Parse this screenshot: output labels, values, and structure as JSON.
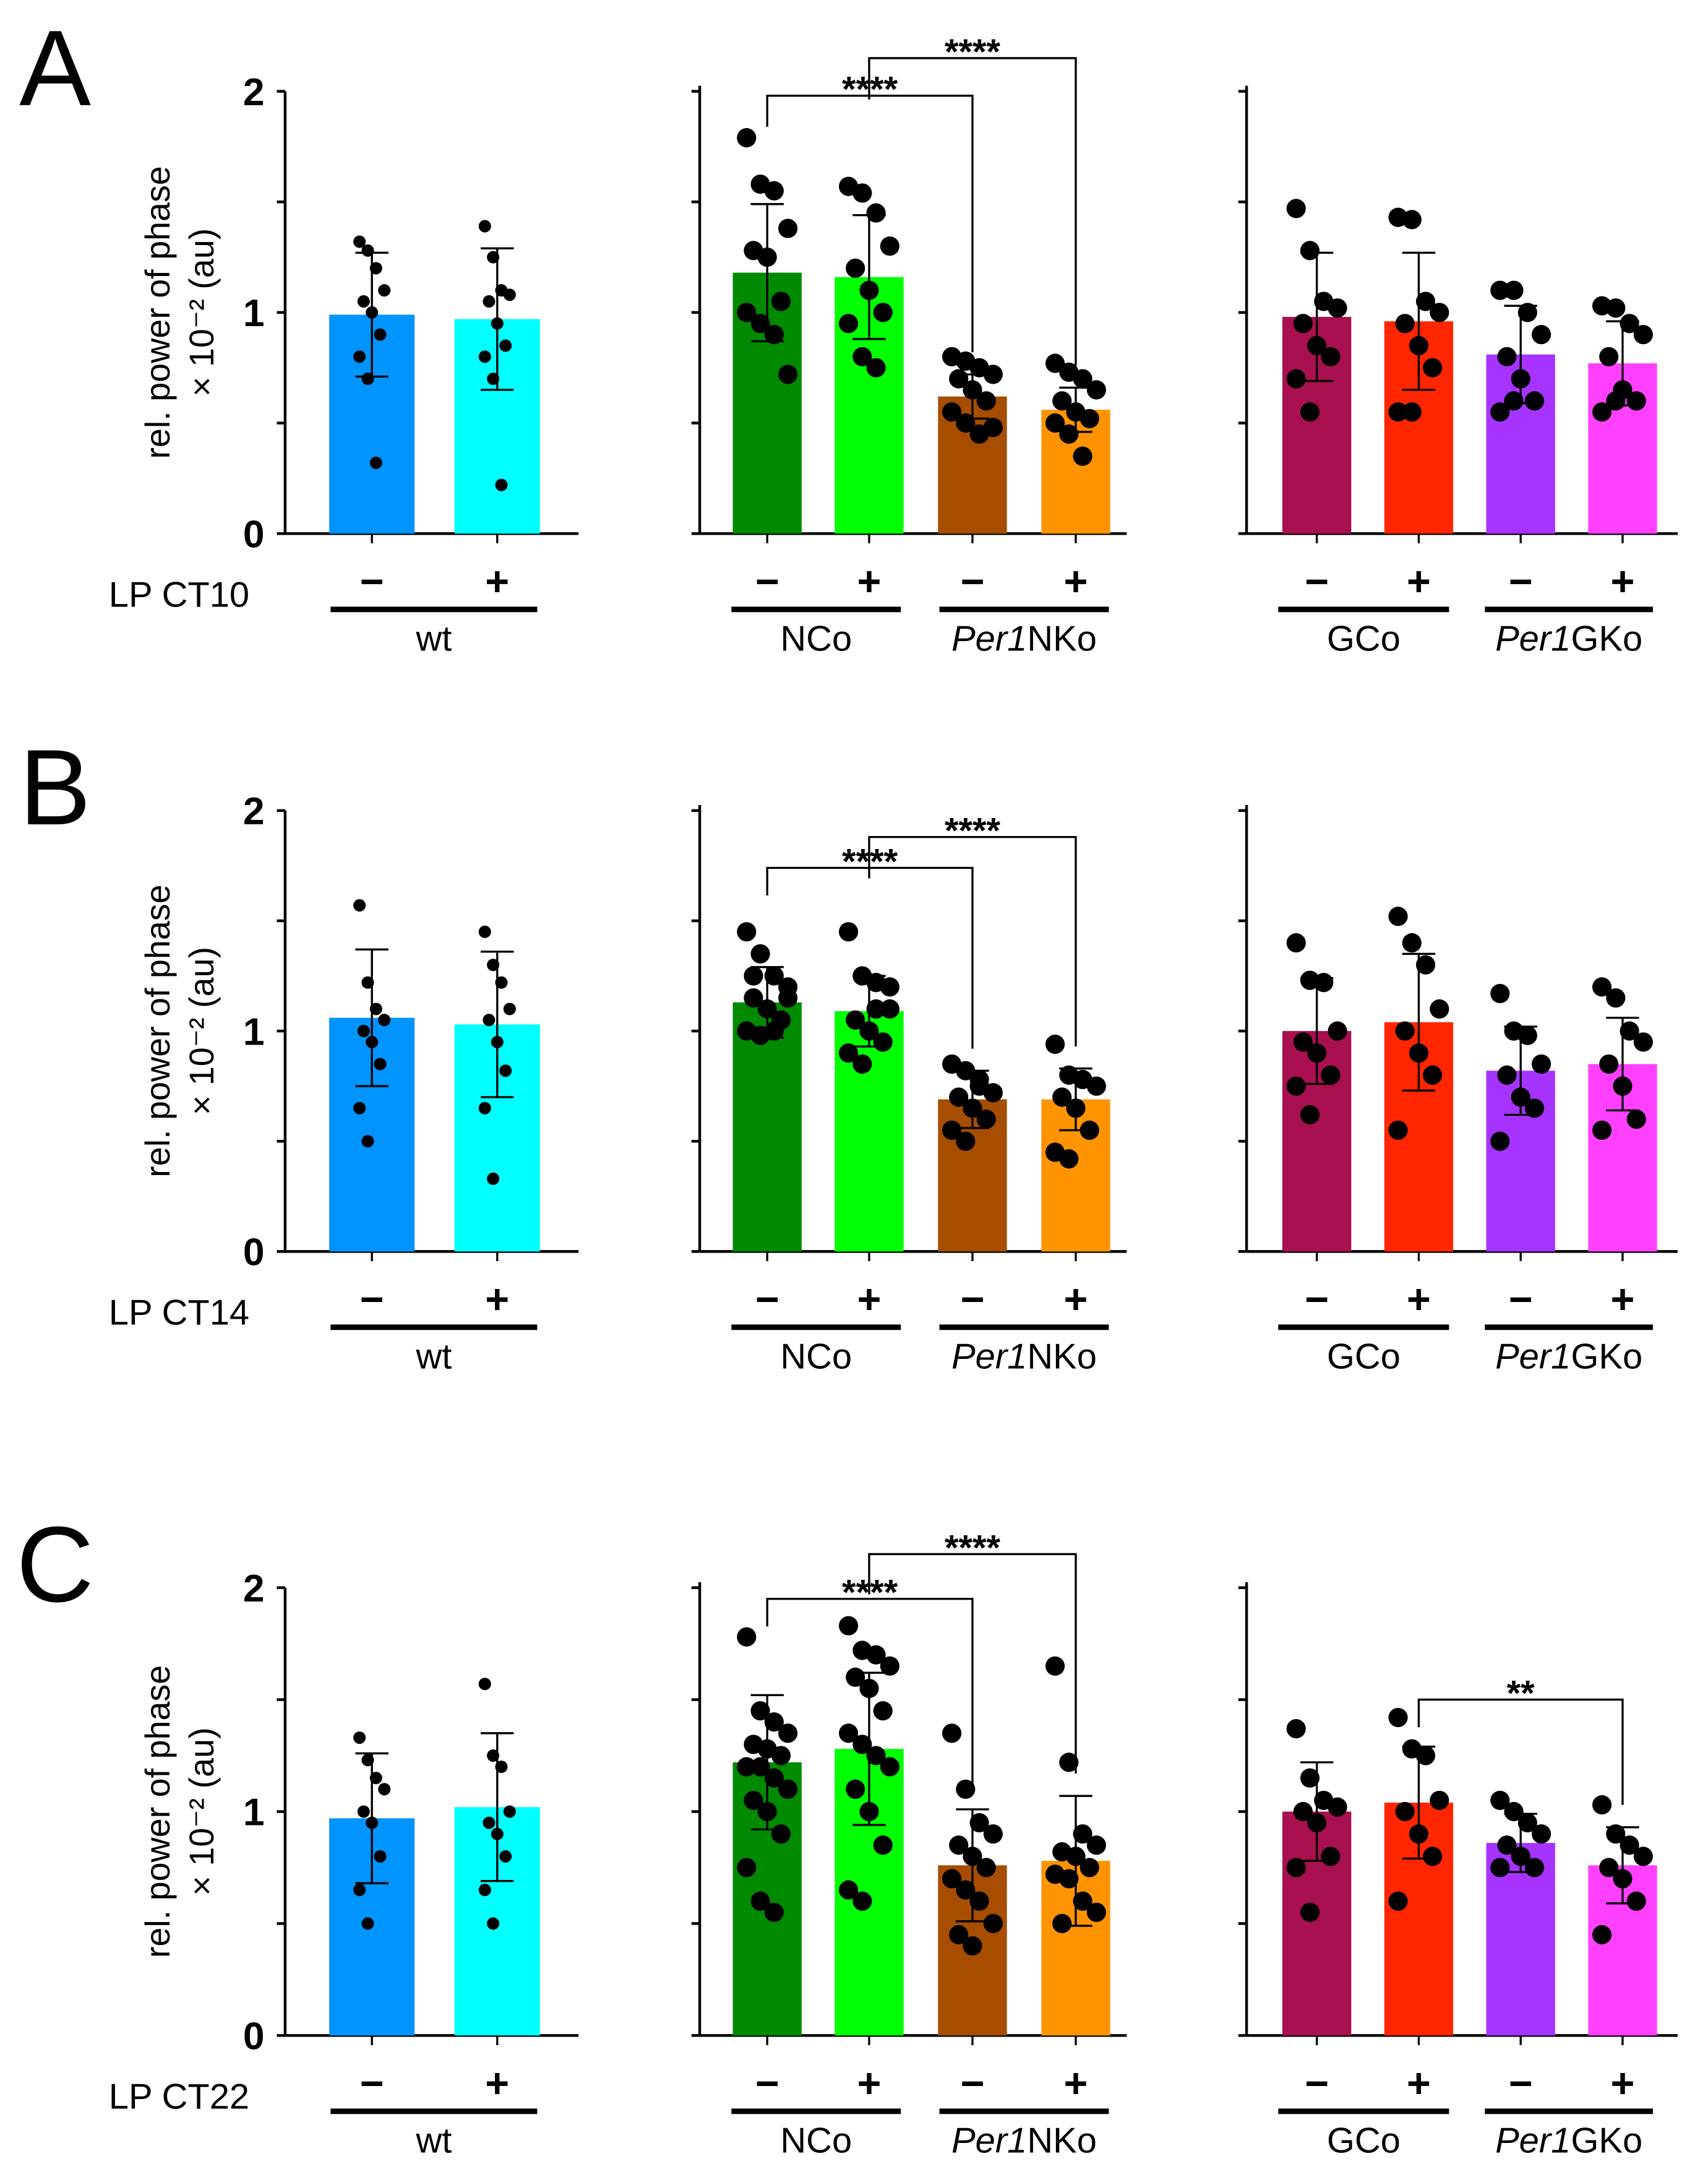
{
  "chart_data": [
    {
      "panel": "A",
      "row_label": "LP CT10",
      "ylabel": "rel. power of phase",
      "ylabel2": "× 10⁻² (au)",
      "ylim": [
        0,
        2
      ],
      "yticks": [
        "0",
        "1",
        "2"
      ],
      "type": "bar",
      "series": [
        {
          "name": "wt −",
          "group": "wt",
          "lp": "−",
          "color": "#0094ff",
          "mean": 0.99,
          "sd": 0.28,
          "points": [
            1.32,
            1.28,
            1.2,
            1.1,
            1.05,
            1.0,
            0.9,
            0.8,
            0.7,
            0.32
          ]
        },
        {
          "name": "wt +",
          "group": "wt",
          "lp": "+",
          "color": "#00ffff",
          "mean": 0.97,
          "sd": 0.32,
          "points": [
            1.39,
            1.25,
            1.1,
            1.08,
            1.05,
            0.95,
            0.85,
            0.8,
            0.7,
            0.22
          ]
        },
        {
          "name": "NCo −",
          "group": "NCo",
          "lp": "−",
          "color": "#008a00",
          "mean": 1.18,
          "sd": 0.31,
          "points": [
            1.79,
            1.58,
            1.55,
            1.38,
            1.28,
            1.25,
            1.05,
            1.0,
            0.95,
            0.9,
            0.72
          ]
        },
        {
          "name": "NCo +",
          "group": "NCo",
          "lp": "+",
          "color": "#00ff00",
          "mean": 1.16,
          "sd": 0.28,
          "points": [
            1.57,
            1.54,
            1.45,
            1.3,
            1.2,
            1.1,
            1.0,
            0.95,
            0.8,
            0.75
          ]
        },
        {
          "name": "Per1NKo −",
          "group": "Per1NKo",
          "lp": "−",
          "color": "#a64d00",
          "mean": 0.62,
          "sd": 0.1,
          "points": [
            0.8,
            0.78,
            0.75,
            0.72,
            0.7,
            0.65,
            0.6,
            0.55,
            0.5,
            0.45,
            0.48
          ]
        },
        {
          "name": "Per1NKo +",
          "group": "Per1NKo",
          "lp": "+",
          "color": "#ff9400",
          "mean": 0.56,
          "sd": 0.1,
          "points": [
            0.77,
            0.73,
            0.7,
            0.65,
            0.6,
            0.55,
            0.52,
            0.5,
            0.45,
            0.35
          ]
        },
        {
          "name": "GCo −",
          "group": "GCo",
          "lp": "−",
          "color": "#a8104f",
          "mean": 0.98,
          "sd": 0.29,
          "points": [
            1.47,
            1.28,
            1.05,
            1.02,
            0.95,
            0.85,
            0.8,
            0.7,
            0.55
          ]
        },
        {
          "name": "GCo +",
          "group": "GCo",
          "lp": "+",
          "color": "#ff2600",
          "mean": 0.96,
          "sd": 0.31,
          "points": [
            1.43,
            1.42,
            1.05,
            1.0,
            0.95,
            0.85,
            0.75,
            0.55,
            0.55
          ]
        },
        {
          "name": "Per1GKo −",
          "group": "Per1GKo",
          "lp": "−",
          "color": "#a633ff",
          "mean": 0.81,
          "sd": 0.22,
          "points": [
            1.1,
            1.1,
            1.0,
            0.9,
            0.8,
            0.7,
            0.6,
            0.55,
            0.6
          ]
        },
        {
          "name": "Per1GKo +",
          "group": "Per1GKo",
          "lp": "+",
          "color": "#ff40ff",
          "mean": 0.77,
          "sd": 0.19,
          "points": [
            1.03,
            1.02,
            0.95,
            0.9,
            0.8,
            0.65,
            0.6,
            0.55,
            0.6
          ]
        }
      ],
      "significance": [
        {
          "from": 2,
          "to": 4,
          "y": 1.98,
          "label": "****"
        },
        {
          "from": 3,
          "to": 5,
          "y": 2.15,
          "label": "****"
        }
      ]
    },
    {
      "panel": "B",
      "row_label": "LP CT14",
      "ylabel": "rel. power of phase",
      "ylabel2": "× 10⁻² (au)",
      "ylim": [
        0,
        2
      ],
      "yticks": [
        "0",
        "1",
        "2"
      ],
      "type": "bar",
      "series": [
        {
          "name": "wt −",
          "group": "wt",
          "lp": "−",
          "color": "#0094ff",
          "mean": 1.06,
          "sd": 0.31,
          "points": [
            1.57,
            1.22,
            1.1,
            1.05,
            1.0,
            0.95,
            0.85,
            0.65,
            0.5
          ]
        },
        {
          "name": "wt +",
          "group": "wt",
          "lp": "+",
          "color": "#00ffff",
          "mean": 1.03,
          "sd": 0.33,
          "points": [
            1.45,
            1.3,
            1.22,
            1.1,
            1.05,
            0.95,
            0.82,
            0.65,
            0.33
          ]
        },
        {
          "name": "NCo −",
          "group": "NCo",
          "lp": "−",
          "color": "#008a00",
          "mean": 1.13,
          "sd": 0.16,
          "points": [
            1.45,
            1.35,
            1.25,
            1.2,
            1.15,
            1.1,
            1.05,
            1.0,
            0.98,
            1.0,
            1.15,
            1.25
          ]
        },
        {
          "name": "NCo +",
          "group": "NCo",
          "lp": "+",
          "color": "#00ff00",
          "mean": 1.09,
          "sd": 0.16,
          "points": [
            1.45,
            1.25,
            1.22,
            1.1,
            1.05,
            1.0,
            0.95,
            0.9,
            0.85,
            1.1,
            1.2
          ]
        },
        {
          "name": "Per1NKo −",
          "group": "Per1NKo",
          "lp": "−",
          "color": "#a64d00",
          "mean": 0.69,
          "sd": 0.13,
          "points": [
            0.85,
            0.82,
            0.78,
            0.72,
            0.7,
            0.65,
            0.6,
            0.55,
            0.5,
            0.75
          ]
        },
        {
          "name": "Per1NKo +",
          "group": "Per1NKo",
          "lp": "+",
          "color": "#ff9400",
          "mean": 0.69,
          "sd": 0.14,
          "points": [
            0.94,
            0.8,
            0.78,
            0.75,
            0.7,
            0.65,
            0.55,
            0.45,
            0.42
          ]
        },
        {
          "name": "GCo −",
          "group": "GCo",
          "lp": "−",
          "color": "#a8104f",
          "mean": 1.0,
          "sd": 0.24,
          "points": [
            1.4,
            1.23,
            1.22,
            1.0,
            0.95,
            0.9,
            0.8,
            0.75,
            0.62
          ]
        },
        {
          "name": "GCo +",
          "group": "GCo",
          "lp": "+",
          "color": "#ff2600",
          "mean": 1.04,
          "sd": 0.31,
          "points": [
            1.52,
            1.4,
            1.3,
            1.1,
            1.0,
            0.9,
            0.8,
            0.55
          ]
        },
        {
          "name": "Per1GKo −",
          "group": "Per1GKo",
          "lp": "−",
          "color": "#a633ff",
          "mean": 0.82,
          "sd": 0.2,
          "points": [
            1.17,
            1.0,
            0.98,
            0.85,
            0.8,
            0.7,
            0.65,
            0.5
          ]
        },
        {
          "name": "Per1GKo +",
          "group": "Per1GKo",
          "lp": "+",
          "color": "#ff40ff",
          "mean": 0.85,
          "sd": 0.21,
          "points": [
            1.2,
            1.15,
            1.0,
            0.95,
            0.85,
            0.75,
            0.6,
            0.55
          ]
        }
      ],
      "significance": [
        {
          "from": 2,
          "to": 4,
          "y": 1.74,
          "label": "****"
        },
        {
          "from": 3,
          "to": 5,
          "y": 1.88,
          "label": "****"
        }
      ]
    },
    {
      "panel": "C",
      "row_label": "LP CT22",
      "ylabel": "rel. power of phase",
      "ylabel2": "× 10⁻² (au)",
      "ylim": [
        0,
        2
      ],
      "yticks": [
        "0",
        "1",
        "2"
      ],
      "type": "bar",
      "series": [
        {
          "name": "wt −",
          "group": "wt",
          "lp": "−",
          "color": "#0094ff",
          "mean": 0.97,
          "sd": 0.29,
          "points": [
            1.33,
            1.23,
            1.15,
            1.1,
            1.0,
            0.95,
            0.8,
            0.65,
            0.5
          ]
        },
        {
          "name": "wt +",
          "group": "wt",
          "lp": "+",
          "color": "#00ffff",
          "mean": 1.02,
          "sd": 0.33,
          "points": [
            1.57,
            1.25,
            1.2,
            1.0,
            0.95,
            0.9,
            0.8,
            0.65,
            0.5
          ]
        },
        {
          "name": "NCo −",
          "group": "NCo",
          "lp": "−",
          "color": "#008a00",
          "mean": 1.22,
          "sd": 0.3,
          "points": [
            1.78,
            1.45,
            1.4,
            1.35,
            1.3,
            1.28,
            1.25,
            1.2,
            1.2,
            1.15,
            1.1,
            1.05,
            1.0,
            0.9,
            0.75,
            0.6,
            0.55
          ]
        },
        {
          "name": "NCo +",
          "group": "NCo",
          "lp": "+",
          "color": "#00ff00",
          "mean": 1.28,
          "sd": 0.34,
          "points": [
            1.83,
            1.72,
            1.7,
            1.65,
            1.6,
            1.55,
            1.45,
            1.35,
            1.3,
            1.25,
            1.2,
            1.1,
            1.0,
            0.85,
            0.65,
            0.6
          ]
        },
        {
          "name": "Per1NKo −",
          "group": "Per1NKo",
          "lp": "−",
          "color": "#a64d00",
          "mean": 0.76,
          "sd": 0.25,
          "points": [
            1.35,
            1.1,
            0.95,
            0.9,
            0.85,
            0.8,
            0.75,
            0.7,
            0.65,
            0.6,
            0.5,
            0.45,
            0.4
          ]
        },
        {
          "name": "Per1NKo +",
          "group": "Per1NKo",
          "lp": "+",
          "color": "#ff9400",
          "mean": 0.78,
          "sd": 0.29,
          "points": [
            1.65,
            1.22,
            0.9,
            0.85,
            0.82,
            0.8,
            0.75,
            0.72,
            0.7,
            0.6,
            0.55,
            0.5
          ]
        },
        {
          "name": "GCo −",
          "group": "GCo",
          "lp": "−",
          "color": "#a8104f",
          "mean": 1.0,
          "sd": 0.22,
          "points": [
            1.37,
            1.15,
            1.05,
            1.02,
            1.0,
            0.95,
            0.8,
            0.75,
            0.55
          ]
        },
        {
          "name": "GCo +",
          "group": "GCo",
          "lp": "+",
          "color": "#ff2600",
          "mean": 1.04,
          "sd": 0.25,
          "points": [
            1.42,
            1.28,
            1.25,
            1.05,
            1.0,
            0.9,
            0.8,
            0.6
          ]
        },
        {
          "name": "Per1GKo −",
          "group": "Per1GKo",
          "lp": "−",
          "color": "#a633ff",
          "mean": 0.86,
          "sd": 0.13,
          "points": [
            1.05,
            1.0,
            0.95,
            0.9,
            0.85,
            0.8,
            0.75,
            0.75
          ]
        },
        {
          "name": "Per1GKo +",
          "group": "Per1GKo",
          "lp": "+",
          "color": "#ff40ff",
          "mean": 0.76,
          "sd": 0.17,
          "points": [
            1.03,
            0.9,
            0.85,
            0.8,
            0.75,
            0.7,
            0.6,
            0.45
          ]
        }
      ],
      "significance": [
        {
          "from": 2,
          "to": 4,
          "y": 1.95,
          "label": "****"
        },
        {
          "from": 3,
          "to": 5,
          "y": 2.15,
          "label": "****"
        },
        {
          "from": 7,
          "to": 9,
          "y": 1.5,
          "label": "**"
        }
      ]
    }
  ],
  "groups": [
    {
      "key": "wt",
      "italic": "",
      "rest": "wt"
    },
    {
      "key": "NCo",
      "italic": "",
      "rest": "NCo"
    },
    {
      "key": "Per1NKo",
      "italic": "Per1",
      "rest": "NKo"
    },
    {
      "key": "GCo",
      "italic": "",
      "rest": "GCo"
    },
    {
      "key": "Per1GKo",
      "italic": "Per1",
      "rest": "GKo"
    }
  ]
}
